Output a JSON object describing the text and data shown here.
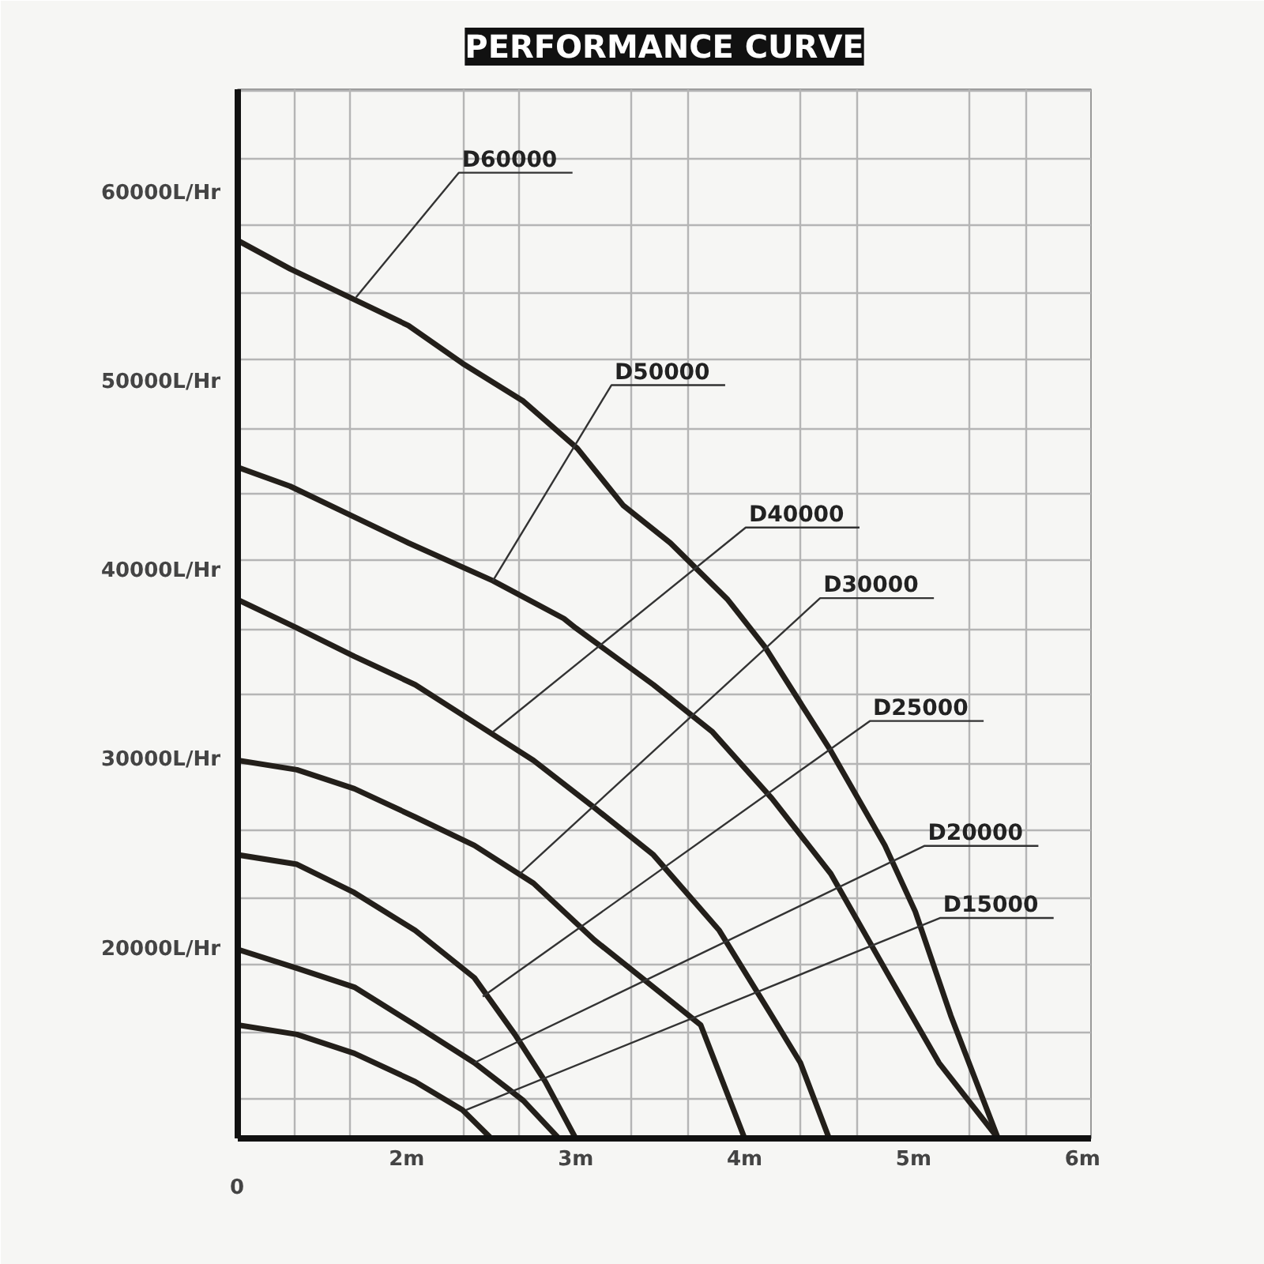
{
  "chart_data": {
    "type": "line",
    "title": "PERFORMANCE CURVE",
    "xlim": [
      1,
      6.05
    ],
    "ylim": [
      10000,
      65500
    ],
    "xticks": [
      {
        "value": 1.333,
        "label": null
      },
      {
        "value": 1.667,
        "label": null
      },
      {
        "value": 2,
        "label": "2m"
      },
      {
        "value": 2.333,
        "label": null
      },
      {
        "value": 2.667,
        "label": null
      },
      {
        "value": 3,
        "label": "3m"
      },
      {
        "value": 3.333,
        "label": null
      },
      {
        "value": 3.667,
        "label": null
      },
      {
        "value": 4,
        "label": "4m"
      },
      {
        "value": 4.333,
        "label": null
      },
      {
        "value": 4.667,
        "label": null
      },
      {
        "value": 5,
        "label": "5m"
      },
      {
        "value": 5.333,
        "label": null
      },
      {
        "value": 5.667,
        "label": null
      },
      {
        "value": 6,
        "label": "6m"
      }
    ],
    "yticks": [
      {
        "value": 12090,
        "label": null
      },
      {
        "value": 15590,
        "label": null
      },
      {
        "value": 19210,
        "label": null
      },
      {
        "value": 20000,
        "label": "20000L/Hr"
      },
      {
        "value": 22710,
        "label": null
      },
      {
        "value": 26330,
        "label": null
      },
      {
        "value": 29830,
        "label": null
      },
      {
        "value": 30000,
        "label": "30000L/Hr"
      },
      {
        "value": 33450,
        "label": null
      },
      {
        "value": 36950,
        "label": null
      },
      {
        "value": 40000,
        "label": "40000L/Hr"
      },
      {
        "value": 40560,
        "label": null
      },
      {
        "value": 44070,
        "label": null
      },
      {
        "value": 47570,
        "label": null
      },
      {
        "value": 50000,
        "label": "50000L/Hr"
      },
      {
        "value": 51190,
        "label": null
      },
      {
        "value": 54690,
        "label": null
      },
      {
        "value": 58310,
        "label": null
      },
      {
        "value": 60000,
        "label": "60000L/Hr"
      },
      {
        "value": 61810,
        "label": null
      },
      {
        "value": 65420,
        "label": null
      }
    ],
    "grid": true,
    "series": [
      {
        "color": "#231f1a",
        "x": [
          1,
          1.31,
          1.66,
          2.01,
          2.33,
          2.69,
          3.01,
          3.28,
          3.56,
          3.9,
          4.12,
          4.51,
          4.83,
          5.01,
          5.22,
          5.5
        ],
        "values": [
          57500,
          56000,
          54500,
          53000,
          51000,
          49000,
          46500,
          43500,
          41500,
          38500,
          36000,
          30500,
          25500,
          22000,
          16500,
          10000
        ]
      },
      {
        "color": "#231f1a",
        "x": [
          1,
          1.31,
          1.66,
          2.01,
          2.51,
          2.93,
          3.0,
          3.46,
          3.81,
          4.16,
          4.51,
          4.86,
          5.15,
          5.5
        ],
        "values": [
          45500,
          44500,
          43000,
          41500,
          39500,
          37500,
          37000,
          34000,
          31500,
          28000,
          24000,
          18500,
          14000,
          10000
        ]
      },
      {
        "color": "#231f1a",
        "x": [
          1,
          1.35,
          1.69,
          2.05,
          2.4,
          2.75,
          3.11,
          3.46,
          3.85,
          4.16,
          4.33,
          4.5
        ],
        "values": [
          38500,
          37000,
          35500,
          34000,
          32000,
          30000,
          27500,
          25000,
          21000,
          16500,
          14000,
          10000
        ]
      },
      {
        "color": "#231f1a",
        "x": [
          1,
          1.35,
          1.69,
          2.05,
          2.4,
          2.75,
          3.11,
          3.46,
          3.74,
          3.87,
          4.0
        ],
        "values": [
          30000,
          29500,
          28500,
          27000,
          25500,
          23500,
          20500,
          18000,
          16000,
          13000,
          10000
        ]
      },
      {
        "color": "#231f1a",
        "x": [
          1,
          1.35,
          1.69,
          2.05,
          2.4,
          2.64,
          2.82,
          3.0
        ],
        "values": [
          25000,
          24500,
          23000,
          21000,
          18500,
          15500,
          13000,
          10000
        ]
      },
      {
        "color": "#231f1a",
        "x": [
          1,
          1.35,
          1.69,
          2.05,
          2.4,
          2.69,
          2.9
        ],
        "values": [
          20000,
          19000,
          18000,
          16000,
          14000,
          12000,
          10000
        ]
      },
      {
        "color": "#231f1a",
        "x": [
          1,
          1.35,
          1.69,
          2.05,
          2.33,
          2.5
        ],
        "values": [
          16000,
          15500,
          14500,
          13000,
          11500,
          10000
        ]
      }
    ],
    "annotations": [
      "0",
      {
        "text": "D60000",
        "x": 1.7,
        "y": 54500
      },
      {
        "text": "D50000",
        "x": 2.51,
        "y": 39500
      },
      {
        "text": "D40000",
        "x": 2.51,
        "y": 31500
      },
      {
        "text": "D30000",
        "x": 2.67,
        "y": 24000
      },
      {
        "text": "D25000",
        "x": 2.45,
        "y": 17500
      },
      {
        "text": "D20000",
        "x": 2.4,
        "y": 14000
      },
      {
        "text": "D15000",
        "x": 2.35,
        "y": 11500
      }
    ]
  }
}
